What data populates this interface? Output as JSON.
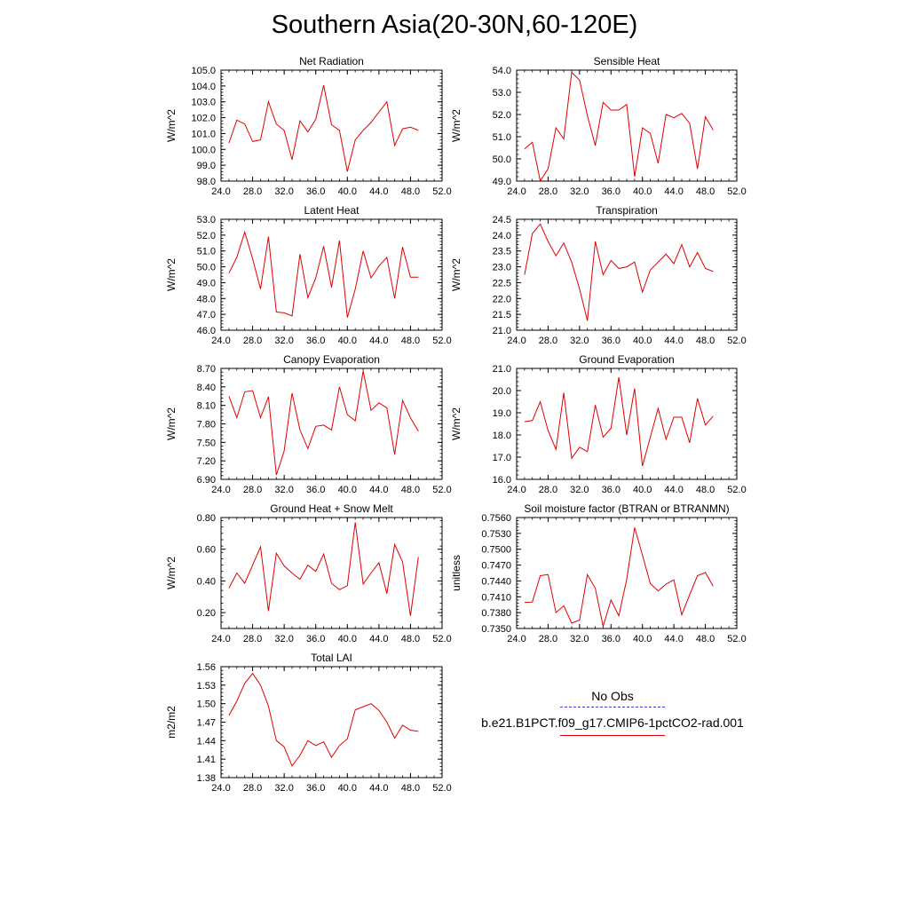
{
  "page": {
    "title": "Southern Asia(20-30N,60-120E)"
  },
  "legend": {
    "obs_label": "No Obs",
    "model_label": "b.e21.B1PCT.f09_g17.CMIP6-1pctCO2-rad.001",
    "obs_color": "#3b3bd0",
    "model_color": "#e00000"
  },
  "chart_data": [
    {
      "type": "line",
      "title": "Net Radiation",
      "ylabel": "W/m^2",
      "xlim": [
        24,
        52
      ],
      "ylim": [
        98,
        105
      ],
      "xticks": [
        "24.0",
        "28.0",
        "32.0",
        "36.0",
        "40.0",
        "44.0",
        "48.0",
        "52.0"
      ],
      "yticks": [
        "98.0",
        "99.0",
        "100.0",
        "101.0",
        "102.0",
        "103.0",
        "104.0",
        "105.0"
      ],
      "x": [
        25,
        26,
        27,
        28,
        29,
        30,
        31,
        32,
        33,
        34,
        35,
        36,
        37,
        38,
        39,
        40,
        41,
        42,
        43,
        44,
        45,
        46,
        47,
        48,
        49
      ],
      "values": [
        100.4,
        101.85,
        101.6,
        100.5,
        100.6,
        103.0,
        101.6,
        101.2,
        99.35,
        101.8,
        101.1,
        101.9,
        104.05,
        101.55,
        101.2,
        98.6,
        100.6,
        101.2,
        101.7,
        102.35,
        103.0,
        100.25,
        101.3,
        101.4,
        101.2
      ]
    },
    {
      "type": "line",
      "title": "Sensible Heat",
      "ylabel": "W/m^2",
      "xlim": [
        24,
        52
      ],
      "ylim": [
        49,
        54
      ],
      "xticks": [
        "24.0",
        "28.0",
        "32.0",
        "36.0",
        "40.0",
        "44.0",
        "48.0",
        "52.0"
      ],
      "yticks": [
        "49.0",
        "50.0",
        "51.0",
        "52.0",
        "53.0",
        "54.0"
      ],
      "x": [
        25,
        26,
        27,
        28,
        29,
        30,
        31,
        32,
        33,
        34,
        35,
        36,
        37,
        38,
        39,
        40,
        41,
        42,
        43,
        44,
        45,
        46,
        47,
        48,
        49
      ],
      "values": [
        50.45,
        50.75,
        49.0,
        49.55,
        51.4,
        50.9,
        53.9,
        53.55,
        51.95,
        50.6,
        52.55,
        52.2,
        52.2,
        52.45,
        49.2,
        51.4,
        51.15,
        49.8,
        52.0,
        51.85,
        52.05,
        51.6,
        49.55,
        51.9,
        51.3
      ]
    },
    {
      "type": "line",
      "title": "Latent Heat",
      "ylabel": "W/m^2",
      "xlim": [
        24,
        52
      ],
      "ylim": [
        46,
        53
      ],
      "xticks": [
        "24.0",
        "28.0",
        "32.0",
        "36.0",
        "40.0",
        "44.0",
        "48.0",
        "52.0"
      ],
      "yticks": [
        "46.0",
        "47.0",
        "48.0",
        "49.0",
        "50.0",
        "51.0",
        "52.0",
        "53.0"
      ],
      "x": [
        25,
        26,
        27,
        28,
        29,
        30,
        31,
        32,
        33,
        34,
        35,
        36,
        37,
        38,
        39,
        40,
        41,
        42,
        43,
        44,
        45,
        46,
        47,
        48,
        49
      ],
      "values": [
        49.6,
        50.6,
        52.2,
        50.5,
        48.6,
        51.9,
        47.15,
        47.1,
        46.9,
        50.8,
        48.05,
        49.3,
        51.3,
        48.7,
        51.65,
        46.8,
        48.6,
        51.0,
        49.3,
        50.05,
        50.6,
        48.0,
        51.25,
        49.35,
        49.35
      ]
    },
    {
      "type": "line",
      "title": "Transpiration",
      "ylabel": "W/m^2",
      "xlim": [
        24,
        52
      ],
      "ylim": [
        21,
        24.5
      ],
      "xticks": [
        "24.0",
        "28.0",
        "32.0",
        "36.0",
        "40.0",
        "44.0",
        "48.0",
        "52.0"
      ],
      "yticks": [
        "21.0",
        "21.5",
        "22.0",
        "22.5",
        "23.0",
        "23.5",
        "24.0",
        "24.5"
      ],
      "x": [
        25,
        26,
        27,
        28,
        29,
        30,
        31,
        32,
        33,
        34,
        35,
        36,
        37,
        38,
        39,
        40,
        41,
        42,
        43,
        44,
        45,
        46,
        47,
        48,
        49
      ],
      "values": [
        22.75,
        24.05,
        24.35,
        23.8,
        23.35,
        23.75,
        23.15,
        22.3,
        21.3,
        23.8,
        22.75,
        23.2,
        22.95,
        23.0,
        23.15,
        22.2,
        22.9,
        23.15,
        23.4,
        23.1,
        23.7,
        23.0,
        23.45,
        22.95,
        22.85
      ]
    },
    {
      "type": "line",
      "title": "Canopy Evaporation",
      "ylabel": "W/m^2",
      "xlim": [
        24,
        52
      ],
      "ylim": [
        6.9,
        8.7
      ],
      "xticks": [
        "24.0",
        "28.0",
        "32.0",
        "36.0",
        "40.0",
        "44.0",
        "48.0",
        "52.0"
      ],
      "yticks": [
        "6.90",
        "7.20",
        "7.50",
        "7.80",
        "8.10",
        "8.40",
        "8.70"
      ],
      "x": [
        25,
        26,
        27,
        28,
        29,
        30,
        31,
        32,
        33,
        34,
        35,
        36,
        37,
        38,
        39,
        40,
        41,
        42,
        43,
        44,
        45,
        46,
        47,
        48,
        49
      ],
      "values": [
        8.25,
        7.9,
        8.32,
        8.34,
        7.9,
        8.24,
        6.97,
        7.36,
        8.3,
        7.7,
        7.4,
        7.76,
        7.78,
        7.7,
        8.4,
        7.95,
        7.85,
        8.66,
        8.02,
        8.14,
        8.06,
        7.3,
        8.18,
        7.9,
        7.68
      ]
    },
    {
      "type": "line",
      "title": "Ground Evaporation",
      "ylabel": "W/m^2",
      "xlim": [
        24,
        52
      ],
      "ylim": [
        16,
        21
      ],
      "xticks": [
        "24.0",
        "28.0",
        "32.0",
        "36.0",
        "40.0",
        "44.0",
        "48.0",
        "52.0"
      ],
      "yticks": [
        "16.0",
        "17.0",
        "18.0",
        "19.0",
        "20.0",
        "21.0"
      ],
      "x": [
        25,
        26,
        27,
        28,
        29,
        30,
        31,
        32,
        33,
        34,
        35,
        36,
        37,
        38,
        39,
        40,
        41,
        42,
        43,
        44,
        45,
        46,
        47,
        48,
        49
      ],
      "values": [
        18.6,
        18.65,
        19.5,
        18.2,
        17.35,
        19.9,
        16.95,
        17.45,
        17.25,
        19.35,
        17.9,
        18.3,
        20.6,
        18.0,
        20.1,
        16.6,
        17.9,
        19.2,
        17.8,
        18.8,
        18.8,
        17.65,
        19.65,
        18.45,
        18.85
      ]
    },
    {
      "type": "line",
      "title": "Ground Heat + Snow Melt",
      "ylabel": "W/m^2",
      "xlim": [
        24,
        52
      ],
      "ylim": [
        0.1,
        0.8
      ],
      "xticks": [
        "24.0",
        "28.0",
        "32.0",
        "36.0",
        "40.0",
        "44.0",
        "48.0",
        "52.0"
      ],
      "yticks": [
        "0.20",
        "0.40",
        "0.60",
        "0.80"
      ],
      "x": [
        25,
        26,
        27,
        28,
        29,
        30,
        31,
        32,
        33,
        34,
        35,
        36,
        37,
        38,
        39,
        40,
        41,
        42,
        43,
        44,
        45,
        46,
        47,
        48,
        49
      ],
      "values": [
        0.355,
        0.45,
        0.385,
        0.5,
        0.615,
        0.21,
        0.575,
        0.495,
        0.45,
        0.41,
        0.5,
        0.46,
        0.57,
        0.385,
        0.345,
        0.37,
        0.77,
        0.38,
        0.45,
        0.515,
        0.32,
        0.63,
        0.52,
        0.18,
        0.55
      ]
    },
    {
      "type": "line",
      "title": "Soil moisture factor (BTRAN or BTRANMN)",
      "ylabel": "unitless",
      "xlim": [
        24,
        52
      ],
      "ylim": [
        0.735,
        0.756
      ],
      "xticks": [
        "24.0",
        "28.0",
        "32.0",
        "36.0",
        "40.0",
        "44.0",
        "48.0",
        "52.0"
      ],
      "yticks": [
        "0.7350",
        "0.7380",
        "0.7410",
        "0.7440",
        "0.7470",
        "0.7500",
        "0.7530",
        "0.7560"
      ],
      "x": [
        25,
        26,
        27,
        28,
        29,
        30,
        31,
        32,
        33,
        34,
        35,
        36,
        37,
        38,
        39,
        40,
        41,
        42,
        43,
        44,
        45,
        46,
        47,
        48,
        49
      ],
      "values": [
        0.7399,
        0.74,
        0.745,
        0.7452,
        0.738,
        0.7393,
        0.736,
        0.7366,
        0.7452,
        0.7426,
        0.7354,
        0.7404,
        0.7374,
        0.7443,
        0.7541,
        0.7489,
        0.7435,
        0.7421,
        0.7434,
        0.7442,
        0.7376,
        0.7414,
        0.745,
        0.7456,
        0.743
      ]
    },
    {
      "type": "line",
      "title": "Total LAI",
      "ylabel": "m2/m2",
      "xlim": [
        24,
        52
      ],
      "ylim": [
        1.38,
        1.56
      ],
      "xticks": [
        "24.0",
        "28.0",
        "32.0",
        "36.0",
        "40.0",
        "44.0",
        "48.0",
        "52.0"
      ],
      "yticks": [
        "1.38",
        "1.41",
        "1.44",
        "1.47",
        "1.50",
        "1.53",
        "1.56"
      ],
      "x": [
        25,
        26,
        27,
        28,
        29,
        30,
        31,
        32,
        33,
        34,
        35,
        36,
        37,
        38,
        39,
        40,
        41,
        42,
        43,
        44,
        45,
        46,
        47,
        48,
        49
      ],
      "values": [
        1.481,
        1.504,
        1.533,
        1.549,
        1.53,
        1.496,
        1.44,
        1.43,
        1.399,
        1.416,
        1.44,
        1.432,
        1.438,
        1.413,
        1.432,
        1.443,
        1.49,
        1.495,
        1.5,
        1.489,
        1.47,
        1.444,
        1.465,
        1.457,
        1.455
      ]
    }
  ]
}
